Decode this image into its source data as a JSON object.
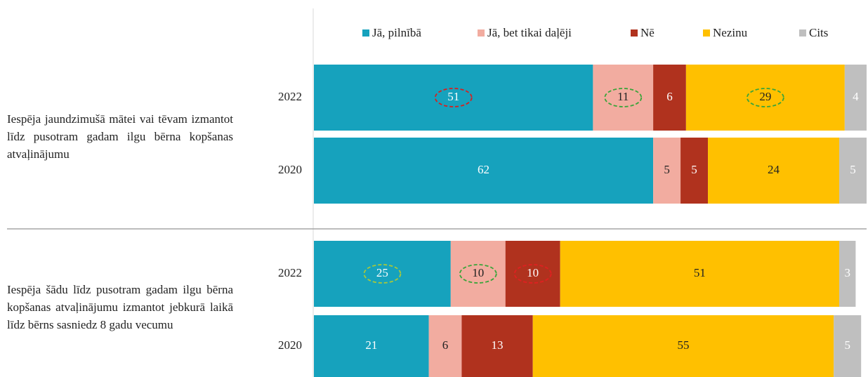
{
  "chart_data": {
    "type": "stacked-bar-horizontal",
    "categories": [
      "2022",
      "2020",
      "2022",
      "2020"
    ],
    "groups": [
      "Iespēja jaundzimušā mātei vai tēvam izmantot līdz pusotram gadam ilgu bērna kopšanas atvaļinājumu",
      "Iespēja šādu līdz pusotram gadam ilgu bērna kopšanas atvaļinājumu izmantot jebkurā laikā līdz bērns sasniedz 8 gadu vecumu"
    ],
    "xlim": [
      0,
      101
    ],
    "series": [
      {
        "name": "Jā, pilnībā",
        "color": "#16a2bd",
        "label_color": "#ffffff",
        "values": [
          51,
          62,
          25,
          21
        ],
        "highlights": [
          "#d62020",
          null,
          "#a8c83a",
          null
        ]
      },
      {
        "name": "Jā, bet tikai daļēji",
        "color": "#f2aca0",
        "label_color": "#222222",
        "values": [
          11,
          5,
          10,
          6
        ],
        "highlights": [
          "#3aa43a",
          null,
          "#3aa43a",
          null
        ]
      },
      {
        "name": "Nē",
        "color": "#b0321e",
        "label_color": "#ffffff",
        "values": [
          6,
          5,
          10,
          13
        ],
        "highlights": [
          null,
          null,
          "#e02020",
          null
        ]
      },
      {
        "name": "Nezinu",
        "color": "#ffc000",
        "label_color": "#222222",
        "values": [
          29,
          24,
          51,
          55
        ],
        "highlights": [
          "#3aa43a",
          null,
          null,
          null
        ]
      },
      {
        "name": "Cits",
        "color": "#bfbfbf",
        "label_color": "#ffffff",
        "values": [
          4,
          5,
          3,
          5
        ],
        "highlights": [
          null,
          null,
          null,
          null
        ]
      }
    ],
    "legend": "top"
  }
}
